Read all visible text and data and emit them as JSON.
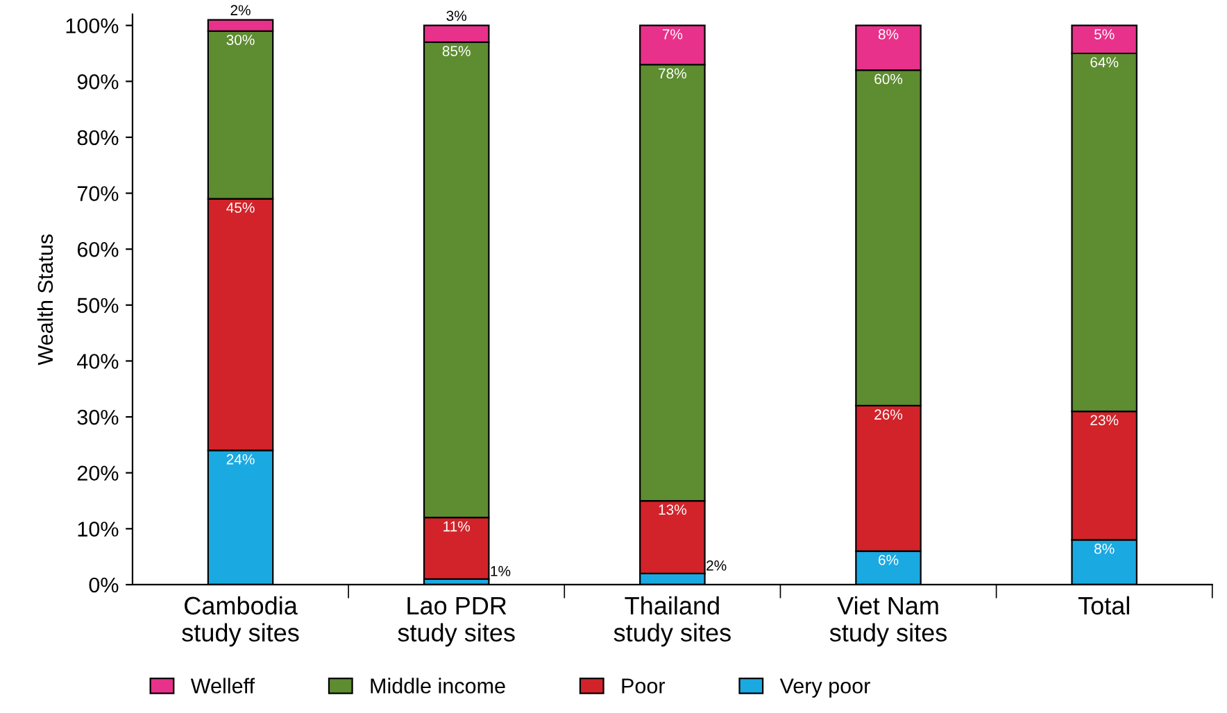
{
  "chart_data": {
    "type": "bar",
    "stacked": true,
    "ylabel": "Wealth Status",
    "categories": [
      "Cambodia\nstudy sites",
      "Lao PDR\nstudy sites",
      "Thailand\nstudy sites",
      "Viet Nam\nstudy sites",
      "Total"
    ],
    "series": [
      {
        "name": "Very poor",
        "color": "#1ba9e1",
        "values": [
          24,
          1,
          2,
          6,
          8
        ],
        "value_labels": [
          "24%",
          "1%",
          "2%",
          "6%",
          "8%"
        ]
      },
      {
        "name": "Poor",
        "color": "#d2232a",
        "values": [
          45,
          11,
          13,
          26,
          23
        ],
        "value_labels": [
          "45%",
          "11%",
          "13%",
          "26%",
          "23%"
        ]
      },
      {
        "name": "Middle income",
        "color": "#5e8c31",
        "values": [
          30,
          85,
          78,
          60,
          64
        ],
        "value_labels": [
          "30%",
          "85%",
          "78%",
          "60%",
          "64%"
        ]
      },
      {
        "name": "Welleff",
        "color": "#e8318a",
        "values": [
          2,
          3,
          7,
          8,
          5
        ],
        "value_labels": [
          "2%",
          "3%",
          "7%",
          "8%",
          "5%"
        ]
      }
    ],
    "ylim": [
      0,
      102
    ],
    "yticks": [
      {
        "value": 0,
        "label": "0%"
      },
      {
        "value": 10,
        "label": "10%"
      },
      {
        "value": 20,
        "label": "20%"
      },
      {
        "value": 30,
        "label": "30%"
      },
      {
        "value": 40,
        "label": "40%"
      },
      {
        "value": 50,
        "label": "50%"
      },
      {
        "value": 60,
        "label": "60%"
      },
      {
        "value": 70,
        "label": "70%"
      },
      {
        "value": 80,
        "label": "80%"
      },
      {
        "value": 90,
        "label": "90%"
      },
      {
        "value": 100,
        "label": "100%"
      }
    ],
    "legend": "bottom",
    "grid": false
  }
}
